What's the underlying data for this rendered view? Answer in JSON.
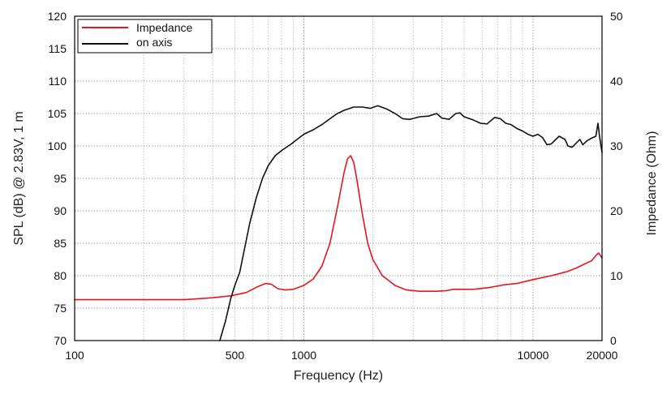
{
  "chart_data": {
    "type": "line",
    "title": "",
    "xlabel": "Frequency (Hz)",
    "ylabel_left": "SPL (dB) @ 2.83V, 1 m",
    "ylabel_right": "Impedance (Ohm)",
    "x_scale": "log",
    "xlim": [
      100,
      20000
    ],
    "ylim_left": [
      70,
      120
    ],
    "ylim_right": [
      0,
      50
    ],
    "grid": true,
    "legend_position": "top-left",
    "x_ticks": [
      {
        "value": 100,
        "label": "100"
      },
      {
        "value": 500,
        "label": "500"
      },
      {
        "value": 1000,
        "label": "1000"
      },
      {
        "value": 10000,
        "label": "10000"
      },
      {
        "value": 20000,
        "label": "20000"
      }
    ],
    "y_left_ticks": [
      {
        "value": 70,
        "label": "70"
      },
      {
        "value": 75,
        "label": "75"
      },
      {
        "value": 80,
        "label": "80"
      },
      {
        "value": 85,
        "label": "85"
      },
      {
        "value": 90,
        "label": "90"
      },
      {
        "value": 95,
        "label": "95"
      },
      {
        "value": 100,
        "label": "100"
      },
      {
        "value": 105,
        "label": "105"
      },
      {
        "value": 110,
        "label": "110"
      },
      {
        "value": 115,
        "label": "115"
      },
      {
        "value": 120,
        "label": "120"
      }
    ],
    "y_right_ticks": [
      {
        "value": 0,
        "label": "0"
      },
      {
        "value": 10,
        "label": "10"
      },
      {
        "value": 20,
        "label": "20"
      },
      {
        "value": 30,
        "label": "30"
      },
      {
        "value": 40,
        "label": "40"
      },
      {
        "value": 50,
        "label": "50"
      }
    ],
    "series": [
      {
        "name": "Impedance",
        "axis": "right",
        "color": "#e8161b",
        "points": [
          [
            100,
            6.3
          ],
          [
            200,
            6.3
          ],
          [
            300,
            6.3
          ],
          [
            330,
            6.4
          ],
          [
            400,
            6.6
          ],
          [
            480,
            6.9
          ],
          [
            560,
            7.4
          ],
          [
            620,
            8.2
          ],
          [
            680,
            8.8
          ],
          [
            720,
            8.7
          ],
          [
            770,
            8.0
          ],
          [
            830,
            7.8
          ],
          [
            900,
            7.9
          ],
          [
            1000,
            8.5
          ],
          [
            1100,
            9.5
          ],
          [
            1200,
            11.5
          ],
          [
            1300,
            15.0
          ],
          [
            1400,
            20.5
          ],
          [
            1500,
            26.0
          ],
          [
            1550,
            28.0
          ],
          [
            1600,
            28.5
          ],
          [
            1650,
            27.5
          ],
          [
            1700,
            25.0
          ],
          [
            1800,
            19.5
          ],
          [
            1900,
            15.0
          ],
          [
            2000,
            12.5
          ],
          [
            2200,
            10.0
          ],
          [
            2500,
            8.5
          ],
          [
            2800,
            7.8
          ],
          [
            3200,
            7.6
          ],
          [
            3800,
            7.6
          ],
          [
            4200,
            7.7
          ],
          [
            4500,
            7.9
          ],
          [
            5000,
            7.9
          ],
          [
            5500,
            7.9
          ],
          [
            6500,
            8.2
          ],
          [
            7500,
            8.6
          ],
          [
            8500,
            8.8
          ],
          [
            10000,
            9.4
          ],
          [
            12000,
            10.0
          ],
          [
            14000,
            10.6
          ],
          [
            15500,
            11.2
          ],
          [
            17000,
            11.9
          ],
          [
            18000,
            12.3
          ],
          [
            18800,
            13.1
          ],
          [
            19300,
            13.5
          ],
          [
            19700,
            13.1
          ],
          [
            20000,
            12.7
          ]
        ]
      },
      {
        "name": "on axis",
        "axis": "left",
        "color": "#111111",
        "points": [
          [
            430,
            70.0
          ],
          [
            455,
            73.0
          ],
          [
            480,
            76.5
          ],
          [
            500,
            78.5
          ],
          [
            525,
            80.5
          ],
          [
            550,
            84.0
          ],
          [
            580,
            88.0
          ],
          [
            620,
            92.0
          ],
          [
            660,
            95.0
          ],
          [
            700,
            97.0
          ],
          [
            750,
            98.5
          ],
          [
            800,
            99.3
          ],
          [
            880,
            100.3
          ],
          [
            950,
            101.2
          ],
          [
            1000,
            101.8
          ],
          [
            1100,
            102.5
          ],
          [
            1200,
            103.3
          ],
          [
            1300,
            104.2
          ],
          [
            1400,
            105.0
          ],
          [
            1500,
            105.5
          ],
          [
            1650,
            106.0
          ],
          [
            1800,
            106.0
          ],
          [
            1950,
            105.8
          ],
          [
            2100,
            106.2
          ],
          [
            2300,
            105.7
          ],
          [
            2500,
            105.0
          ],
          [
            2700,
            104.2
          ],
          [
            2900,
            104.1
          ],
          [
            3200,
            104.5
          ],
          [
            3500,
            104.6
          ],
          [
            3800,
            105.0
          ],
          [
            4000,
            104.3
          ],
          [
            4300,
            104.1
          ],
          [
            4600,
            105.0
          ],
          [
            4800,
            105.1
          ],
          [
            5000,
            104.5
          ],
          [
            5400,
            104.1
          ],
          [
            5900,
            103.5
          ],
          [
            6300,
            103.4
          ],
          [
            6800,
            104.4
          ],
          [
            7200,
            104.2
          ],
          [
            7600,
            103.5
          ],
          [
            8000,
            103.3
          ],
          [
            8500,
            102.7
          ],
          [
            9000,
            102.3
          ],
          [
            9500,
            101.8
          ],
          [
            10000,
            101.5
          ],
          [
            10500,
            101.8
          ],
          [
            11000,
            101.3
          ],
          [
            11500,
            100.2
          ],
          [
            12000,
            100.3
          ],
          [
            13000,
            101.5
          ],
          [
            13800,
            101.0
          ],
          [
            14200,
            100.0
          ],
          [
            14800,
            99.8
          ],
          [
            15300,
            100.3
          ],
          [
            16000,
            101.0
          ],
          [
            16500,
            100.2
          ],
          [
            17200,
            100.8
          ],
          [
            18000,
            101.2
          ],
          [
            18800,
            101.5
          ],
          [
            19200,
            103.5
          ],
          [
            19500,
            101.5
          ],
          [
            20000,
            99.0
          ]
        ]
      }
    ]
  }
}
